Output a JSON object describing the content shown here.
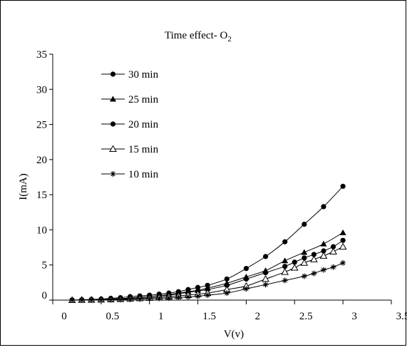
{
  "chart_data": {
    "type": "line",
    "title": "Time effect- O",
    "title_subscript": "2",
    "xlabel": "V(v)",
    "ylabel": "I(mA)",
    "xlim": [
      0,
      3.5
    ],
    "ylim": [
      0,
      35
    ],
    "xticks": [
      "0",
      "0.5",
      "1",
      "1.5",
      "2",
      "2.5",
      "3",
      "3.5"
    ],
    "xtick_values": [
      0,
      0.5,
      1,
      1.5,
      2,
      2.5,
      3,
      3.5
    ],
    "yticks": [
      "0",
      "5",
      "10",
      "15",
      "20",
      "25",
      "30",
      "35"
    ],
    "ytick_values": [
      0,
      5,
      10,
      15,
      20,
      25,
      30,
      35
    ],
    "grid": false,
    "legend_position": "top-left",
    "line_color": "#000000",
    "series": [
      {
        "name": "30 min",
        "marker": "circle-filled",
        "x": [
          0.2,
          0.3,
          0.4,
          0.5,
          0.6,
          0.7,
          0.8,
          0.9,
          1.0,
          1.1,
          1.2,
          1.3,
          1.4,
          1.5,
          1.6,
          1.8,
          2.0,
          2.2,
          2.4,
          2.6,
          2.8,
          3.0
        ],
        "y": [
          0.0,
          0.05,
          0.1,
          0.15,
          0.25,
          0.35,
          0.5,
          0.6,
          0.7,
          0.85,
          1.0,
          1.2,
          1.5,
          1.8,
          2.1,
          3.0,
          4.5,
          6.2,
          8.3,
          10.8,
          13.3,
          16.2
        ]
      },
      {
        "name": "25 min",
        "marker": "triangle-filled",
        "x": [
          0.2,
          0.3,
          0.4,
          0.5,
          0.6,
          0.7,
          0.8,
          0.9,
          1.0,
          1.1,
          1.2,
          1.3,
          1.4,
          1.5,
          1.6,
          1.8,
          2.0,
          2.2,
          2.4,
          2.6,
          2.8,
          3.0
        ],
        "y": [
          0.0,
          0.03,
          0.06,
          0.1,
          0.15,
          0.2,
          0.3,
          0.4,
          0.5,
          0.65,
          0.8,
          1.0,
          1.2,
          1.4,
          1.7,
          2.4,
          3.3,
          4.2,
          5.6,
          6.8,
          8.0,
          9.6
        ]
      },
      {
        "name": "20 min",
        "marker": "circle-filled",
        "x": [
          0.2,
          0.3,
          0.4,
          0.5,
          0.6,
          0.7,
          0.8,
          0.9,
          1.0,
          1.1,
          1.2,
          1.3,
          1.4,
          1.5,
          1.6,
          1.8,
          2.0,
          2.2,
          2.4,
          2.5,
          2.6,
          2.7,
          2.8,
          2.9,
          3.0
        ],
        "y": [
          0.0,
          0.03,
          0.06,
          0.1,
          0.15,
          0.2,
          0.3,
          0.4,
          0.5,
          0.6,
          0.7,
          0.9,
          1.1,
          1.3,
          1.5,
          2.1,
          3.0,
          3.9,
          4.8,
          5.4,
          6.0,
          6.5,
          7.0,
          7.6,
          8.5
        ]
      },
      {
        "name": "15 min",
        "marker": "triangle-open",
        "x": [
          0.2,
          0.3,
          0.4,
          0.5,
          0.6,
          0.7,
          0.8,
          0.9,
          1.0,
          1.1,
          1.2,
          1.3,
          1.4,
          1.5,
          1.6,
          1.8,
          2.0,
          2.2,
          2.4,
          2.5,
          2.6,
          2.7,
          2.8,
          2.9,
          3.0
        ],
        "y": [
          0.0,
          0.02,
          0.04,
          0.06,
          0.1,
          0.14,
          0.2,
          0.26,
          0.32,
          0.4,
          0.5,
          0.6,
          0.72,
          0.85,
          1.0,
          1.5,
          2.0,
          3.0,
          4.0,
          4.6,
          5.3,
          5.8,
          6.3,
          6.9,
          7.6
        ]
      },
      {
        "name": "10 min",
        "marker": "asterisk",
        "x": [
          0.2,
          0.3,
          0.4,
          0.5,
          0.6,
          0.7,
          0.8,
          0.9,
          1.0,
          1.1,
          1.2,
          1.3,
          1.4,
          1.5,
          1.6,
          1.8,
          2.0,
          2.2,
          2.4,
          2.6,
          2.7,
          2.8,
          2.9,
          3.0
        ],
        "y": [
          0.0,
          0.01,
          0.02,
          0.04,
          0.06,
          0.09,
          0.12,
          0.16,
          0.2,
          0.25,
          0.3,
          0.38,
          0.45,
          0.55,
          0.7,
          1.0,
          1.6,
          2.2,
          2.8,
          3.4,
          3.8,
          4.3,
          4.7,
          5.3
        ]
      }
    ]
  }
}
